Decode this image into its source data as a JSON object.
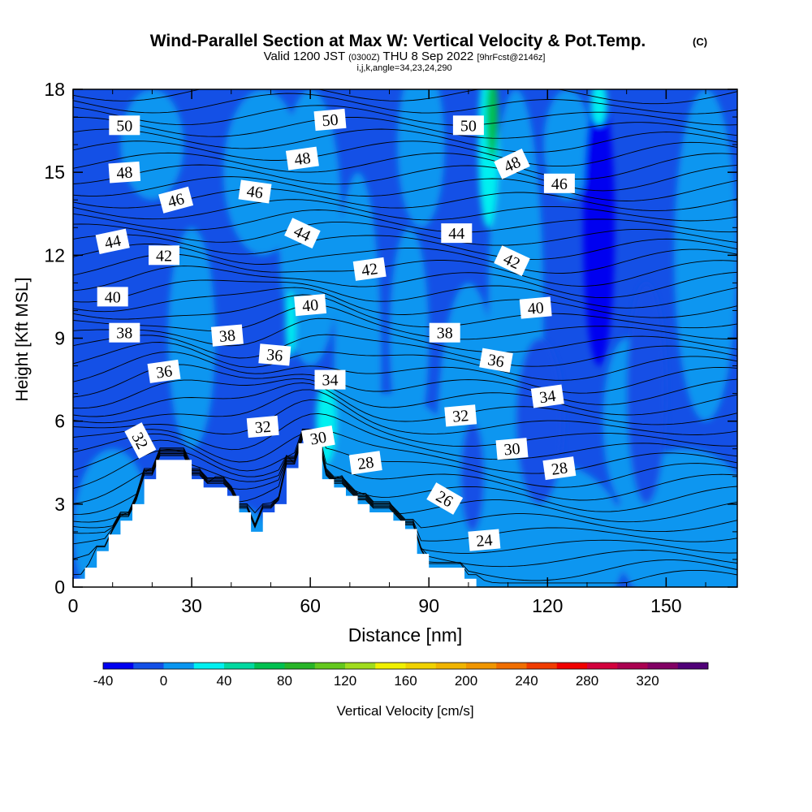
{
  "chart_data": {
    "type": "heatmap",
    "title": "Wind-Parallel Section at Max W: Vertical Velocity & Pot.Temp.",
    "title_mark": "(C)",
    "subtitle": {
      "part1": "Valid 1200 JST",
      "part2": "(0300Z)",
      "part3": "THU 8 Sep 2022",
      "part4": "[9hrFcst@2146z]"
    },
    "info_line": "i,j,k,angle=34,23,24,290",
    "xlabel": "Distance [nm]",
    "ylabel": "Height [Kft MSL]",
    "xlim": [
      0,
      168
    ],
    "ylim": [
      0,
      18
    ],
    "x_ticks": [
      "0",
      "30",
      "60",
      "90",
      "120",
      "150"
    ],
    "y_ticks": [
      "0",
      "3",
      "6",
      "9",
      "12",
      "15",
      "18"
    ],
    "colorbar": {
      "label": "Vertical Velocity [cm/s]",
      "tick_labels": [
        "-40",
        "0",
        "40",
        "80",
        "120",
        "160",
        "200",
        "240",
        "280",
        "320"
      ],
      "min": -40,
      "step": 20,
      "colors": [
        "#0000f0",
        "#1450e6",
        "#0a96f0",
        "#00f0f0",
        "#00d8a0",
        "#00c050",
        "#28b428",
        "#64c81e",
        "#a0dc1e",
        "#f0f000",
        "#f0d200",
        "#f0b400",
        "#f09600",
        "#f06e00",
        "#f03c00",
        "#f00000",
        "#d2003c",
        "#aa0050",
        "#820064",
        "#500078"
      ]
    },
    "isentrope_labels": [
      "50",
      "50",
      "50",
      "48",
      "48",
      "48",
      "46",
      "46",
      "46",
      "44",
      "44",
      "44",
      "42",
      "42",
      "42",
      "40",
      "40",
      "40",
      "38",
      "38",
      "38",
      "36",
      "36",
      "36",
      "34",
      "34",
      "32",
      "32",
      "32",
      "30",
      "30",
      "28",
      "28",
      "26",
      "24"
    ],
    "terrain_profile": {
      "x_nm": [
        0,
        3,
        6,
        9,
        12,
        15,
        18,
        21,
        24,
        27,
        30,
        33,
        36,
        39,
        42,
        45,
        48,
        51,
        54,
        57,
        60,
        63,
        66,
        69,
        72,
        75,
        78,
        81,
        84,
        87,
        90,
        93,
        96,
        99
      ],
      "height_kft": [
        0.3,
        0.7,
        1.3,
        1.9,
        2.4,
        3.0,
        3.9,
        4.6,
        4.6,
        4.6,
        3.9,
        3.6,
        3.6,
        3.3,
        2.7,
        2.0,
        2.7,
        3.0,
        4.3,
        5.2,
        5.2,
        3.9,
        3.6,
        3.3,
        3.0,
        2.7,
        2.7,
        2.4,
        2.1,
        1.2,
        0.7,
        0.7,
        0.7,
        0.3
      ]
    }
  }
}
